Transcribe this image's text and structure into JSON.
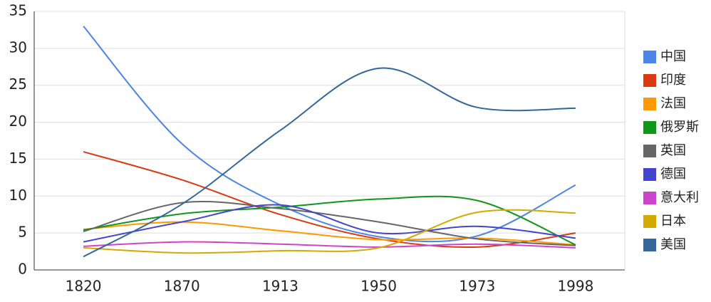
{
  "chart_data": {
    "type": "line",
    "categories": [
      "1820",
      "1870",
      "1913",
      "1950",
      "1973",
      "1998"
    ],
    "series": [
      {
        "name": "中国",
        "color": "#4a86e8",
        "values": [
          33.0,
          17.1,
          8.8,
          4.5,
          4.6,
          11.5
        ]
      },
      {
        "name": "印度",
        "color": "#dc3912",
        "values": [
          16.0,
          12.2,
          7.5,
          4.2,
          3.1,
          5.0
        ]
      },
      {
        "name": "法国",
        "color": "#ff9900",
        "values": [
          5.5,
          6.5,
          5.3,
          4.1,
          4.3,
          3.4
        ]
      },
      {
        "name": "俄罗斯",
        "color": "#109618",
        "values": [
          5.4,
          7.6,
          8.5,
          9.6,
          9.4,
          3.4
        ]
      },
      {
        "name": "英国",
        "color": "#666666",
        "values": [
          5.2,
          9.1,
          8.3,
          6.5,
          4.2,
          3.3
        ]
      },
      {
        "name": "德国",
        "color": "#4444cc",
        "values": [
          3.8,
          6.5,
          8.8,
          5.0,
          5.9,
          4.3
        ]
      },
      {
        "name": "意大利",
        "color": "#cc44cc",
        "values": [
          3.2,
          3.8,
          3.5,
          3.1,
          3.5,
          3.0
        ]
      },
      {
        "name": "日本",
        "color": "#d4aa00",
        "values": [
          3.0,
          2.3,
          2.6,
          3.0,
          7.8,
          7.7
        ]
      },
      {
        "name": "美国",
        "color": "#336699",
        "values": [
          1.8,
          8.9,
          18.9,
          27.3,
          22.0,
          21.9
        ]
      }
    ],
    "ylim": [
      0,
      35
    ],
    "yticks": [
      0,
      5,
      10,
      15,
      20,
      25,
      30,
      35
    ],
    "grid": true,
    "legend": "right"
  }
}
